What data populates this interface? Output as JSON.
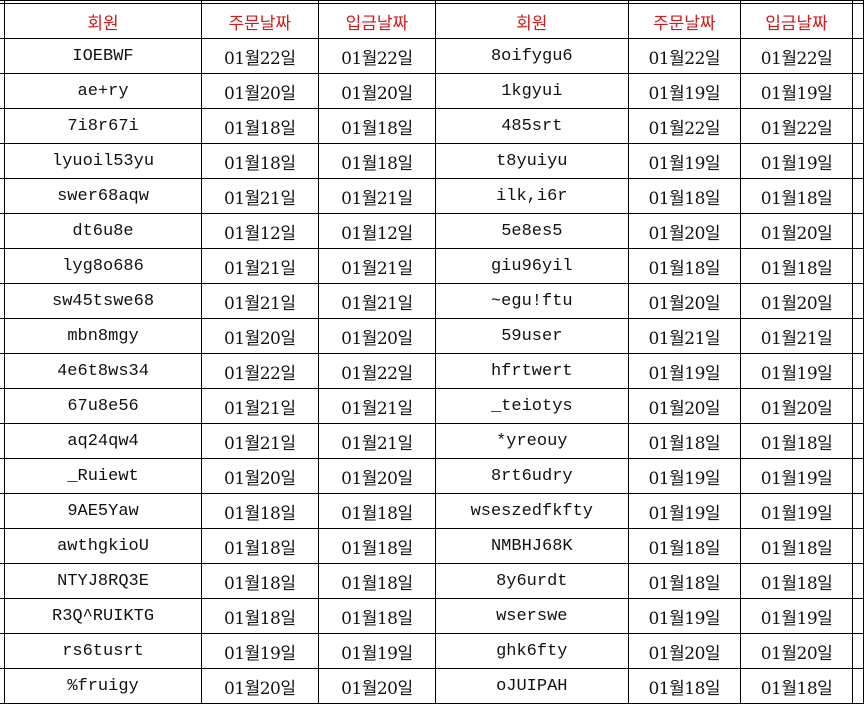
{
  "header": {
    "left": [
      "회원",
      "주문날짜",
      "입금날짜"
    ],
    "right": [
      "회원",
      "주문날짜",
      "입금날짜"
    ]
  },
  "header_color": "#d11a1a",
  "rows": [
    {
      "m1": "IOEBWF",
      "o1": "01월22일",
      "p1": "01월22일",
      "m2": "8oifygu6",
      "o2": "01월22일",
      "p2": "01월22일"
    },
    {
      "m1": "ae+ry",
      "o1": "01월20일",
      "p1": "01월20일",
      "m2": "1kgyui",
      "o2": "01월19일",
      "p2": "01월19일"
    },
    {
      "m1": "7i8r67i",
      "o1": "01월18일",
      "p1": "01월18일",
      "m2": "485srt",
      "o2": "01월22일",
      "p2": "01월22일"
    },
    {
      "m1": "lyuoil53yu",
      "o1": "01월18일",
      "p1": "01월18일",
      "m2": "t8yuiyu",
      "o2": "01월19일",
      "p2": "01월19일"
    },
    {
      "m1": "swer68aqw",
      "o1": "01월21일",
      "p1": "01월21일",
      "m2": "ilk,i6r",
      "o2": "01월18일",
      "p2": "01월18일"
    },
    {
      "m1": "dt6u8e",
      "o1": "01월12일",
      "p1": "01월12일",
      "m2": "5e8es5",
      "o2": "01월20일",
      "p2": "01월20일"
    },
    {
      "m1": "lyg8o686",
      "o1": "01월21일",
      "p1": "01월21일",
      "m2": "giu96yil",
      "o2": "01월18일",
      "p2": "01월18일"
    },
    {
      "m1": "sw45tswe68",
      "o1": "01월21일",
      "p1": "01월21일",
      "m2": "~egu!ftu",
      "o2": "01월20일",
      "p2": "01월20일"
    },
    {
      "m1": "mbn8mgy",
      "o1": "01월20일",
      "p1": "01월20일",
      "m2": "59user",
      "o2": "01월21일",
      "p2": "01월21일"
    },
    {
      "m1": "4e6t8ws34",
      "o1": "01월22일",
      "p1": "01월22일",
      "m2": "hfrtwert",
      "o2": "01월19일",
      "p2": "01월19일"
    },
    {
      "m1": "67u8e56",
      "o1": "01월21일",
      "p1": "01월21일",
      "m2": "_teiotys",
      "o2": "01월20일",
      "p2": "01월20일"
    },
    {
      "m1": "aq24qw4",
      "o1": "01월21일",
      "p1": "01월21일",
      "m2": "*yreouy",
      "o2": "01월18일",
      "p2": "01월18일"
    },
    {
      "m1": "_Ruiewt",
      "o1": "01월20일",
      "p1": "01월20일",
      "m2": "8rt6udry",
      "o2": "01월19일",
      "p2": "01월19일"
    },
    {
      "m1": "9AE5Yaw",
      "o1": "01월18일",
      "p1": "01월18일",
      "m2": "wseszedfkfty",
      "o2": "01월19일",
      "p2": "01월19일"
    },
    {
      "m1": "awthgkioU",
      "o1": "01월18일",
      "p1": "01월18일",
      "m2": "NMBHJ68K",
      "o2": "01월18일",
      "p2": "01월18일"
    },
    {
      "m1": "NTYJ8RQ3E",
      "o1": "01월18일",
      "p1": "01월18일",
      "m2": "8y6urdt",
      "o2": "01월18일",
      "p2": "01월18일"
    },
    {
      "m1": "R3Q^RUIKTG",
      "o1": "01월18일",
      "p1": "01월18일",
      "m2": "wserswe",
      "o2": "01월19일",
      "p2": "01월19일"
    },
    {
      "m1": "rs6tusrt",
      "o1": "01월19일",
      "p1": "01월19일",
      "m2": "ghk6fty",
      "o2": "01월20일",
      "p2": "01월20일"
    },
    {
      "m1": "%fruigy",
      "o1": "01월20일",
      "p1": "01월20일",
      "m2": "oJUIPAH",
      "o2": "01월18일",
      "p2": "01월18일"
    }
  ]
}
